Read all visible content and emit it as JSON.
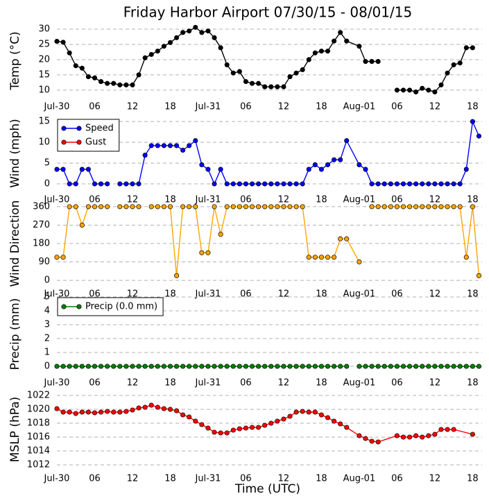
{
  "chart_data": [
    {
      "type": "line",
      "title": "Friday Harbor Airport 07/30/15 - 08/01/15",
      "ylabel": "Temp (°C)",
      "x": [
        0,
        1,
        2,
        3,
        4,
        5,
        6,
        7,
        8,
        9,
        10,
        11,
        12,
        13,
        14,
        15,
        16,
        17,
        18,
        19,
        20,
        21,
        22,
        23,
        24,
        25,
        26,
        27,
        28,
        29,
        30,
        31,
        32,
        33,
        34,
        35,
        36,
        37,
        38,
        39,
        40,
        41,
        42,
        43,
        44,
        45,
        46,
        48,
        49,
        50,
        51,
        52,
        54,
        55,
        56,
        57,
        58,
        59,
        60,
        61,
        62,
        63,
        64,
        65,
        66
      ],
      "series": [
        {
          "color": "#000000",
          "values": [
            26,
            25.7,
            22.2,
            18,
            17.2,
            14.4,
            14,
            12.8,
            12.2,
            12.2,
            11.7,
            11.7,
            11.7,
            15,
            20.6,
            21.7,
            22.8,
            24.4,
            25.6,
            27.2,
            28.9,
            29.4,
            30.6,
            28.9,
            29.4,
            27.2,
            23.9,
            18.3,
            15.6,
            16.1,
            12.8,
            12.2,
            12.2,
            11.1,
            11.1,
            11.1,
            11.1,
            14.4,
            15.6,
            16.7,
            20,
            22.2,
            22.8,
            22.8,
            26.1,
            28.9,
            26.1,
            24.4,
            19.4,
            19.4,
            19.4,
            null,
            10,
            10,
            10,
            9.4,
            10.6,
            10,
            9.4,
            11.7,
            15.6,
            18.3,
            18.9,
            23.9,
            23.9
          ]
        }
      ],
      "xlim": [
        0,
        67.5
      ],
      "ylim": [
        7.7,
        31.6
      ],
      "yticks": [
        10,
        15,
        20,
        25,
        30
      ],
      "grid": true,
      "xticks": [
        {
          "value": 0,
          "label": "Jul-30"
        },
        {
          "value": 6,
          "label": "06"
        },
        {
          "value": 12,
          "label": "12"
        },
        {
          "value": 18,
          "label": "18"
        },
        {
          "value": 24,
          "label": "Jul-31"
        },
        {
          "value": 30,
          "label": "06"
        },
        {
          "value": 36,
          "label": "12"
        },
        {
          "value": 42,
          "label": "18"
        },
        {
          "value": 48,
          "label": "Aug-01"
        },
        {
          "value": 54,
          "label": "06"
        },
        {
          "value": 60,
          "label": "12"
        },
        {
          "value": 66,
          "label": "18"
        }
      ]
    },
    {
      "type": "line",
      "ylabel": "Wind (mph)",
      "legend": "upper left",
      "x": [
        0,
        1,
        2,
        3,
        4,
        5,
        6,
        7,
        8,
        9,
        10,
        11,
        12,
        13,
        14,
        15,
        16,
        17,
        18,
        19,
        20,
        21,
        22,
        23,
        24,
        25,
        26,
        27,
        28,
        29,
        30,
        31,
        32,
        33,
        34,
        35,
        36,
        37,
        38,
        39,
        40,
        41,
        42,
        43,
        44,
        45,
        46,
        48,
        49,
        50,
        51,
        52,
        53,
        54,
        55,
        56,
        57,
        58,
        59,
        60,
        61,
        62,
        63,
        64,
        65,
        66,
        67
      ],
      "series": [
        {
          "name": "Speed",
          "color": "#0000ff",
          "values": [
            3.5,
            3.5,
            0,
            0,
            3.5,
            3.5,
            0,
            0,
            0,
            null,
            0,
            0,
            0,
            0,
            6.9,
            9.2,
            9.2,
            9.2,
            9.2,
            9.2,
            8.1,
            9.2,
            10.4,
            4.6,
            3.5,
            0,
            3.5,
            0,
            0,
            0,
            0,
            0,
            0,
            0,
            0,
            0,
            0,
            0,
            0,
            0,
            3.5,
            4.6,
            3.5,
            4.6,
            5.8,
            5.8,
            10.4,
            4.6,
            3.5,
            0,
            0,
            0,
            0,
            0,
            0,
            0,
            0,
            0,
            0,
            0,
            0,
            0,
            0,
            0,
            3.5,
            15,
            11.5
          ]
        },
        {
          "name": "Gust",
          "color": "#ff0000",
          "values": [
            null,
            null,
            null,
            null,
            null,
            null,
            null,
            null,
            null,
            null,
            null,
            null,
            null,
            null,
            null,
            null,
            null,
            null,
            null,
            null,
            null,
            null,
            null,
            null,
            null,
            null,
            null,
            null,
            null,
            null,
            null,
            null,
            null,
            null,
            null,
            null,
            null,
            null,
            null,
            null,
            null,
            null,
            null,
            null,
            null,
            null,
            null,
            null,
            null,
            null,
            null,
            null,
            null,
            null,
            null,
            null,
            null,
            null,
            null,
            null,
            null,
            null,
            null,
            null,
            null,
            null,
            null
          ]
        }
      ],
      "xlim": [
        0,
        67.5
      ],
      "ylim": [
        -1.5,
        16.2
      ],
      "yticks": [
        0,
        5,
        10,
        15
      ],
      "grid": true,
      "xticks": [
        {
          "value": 0,
          "label": "Jul-30"
        },
        {
          "value": 6,
          "label": "06"
        },
        {
          "value": 12,
          "label": "12"
        },
        {
          "value": 18,
          "label": "18"
        },
        {
          "value": 24,
          "label": "Jul-31"
        },
        {
          "value": 30,
          "label": "06"
        },
        {
          "value": 36,
          "label": "12"
        },
        {
          "value": 42,
          "label": "18"
        },
        {
          "value": 48,
          "label": "Aug-01"
        },
        {
          "value": 54,
          "label": "06"
        },
        {
          "value": 60,
          "label": "12"
        },
        {
          "value": 66,
          "label": "18"
        }
      ]
    },
    {
      "type": "line",
      "ylabel": "Wind Direction",
      "x": [
        0,
        1,
        2,
        3,
        4,
        5,
        6,
        7,
        8,
        9,
        10,
        11,
        12,
        13,
        14,
        15,
        16,
        17,
        18,
        19,
        20,
        21,
        22,
        23,
        24,
        25,
        26,
        27,
        28,
        29,
        30,
        31,
        32,
        33,
        34,
        35,
        36,
        37,
        38,
        39,
        40,
        41,
        42,
        43,
        44,
        45,
        46,
        48,
        49,
        50,
        51,
        52,
        53,
        54,
        55,
        56,
        57,
        58,
        59,
        60,
        61,
        62,
        63,
        64,
        65,
        66,
        67
      ],
      "series": [
        {
          "color": "#ffa500",
          "values": [
            113,
            113,
            360,
            360,
            270,
            360,
            360,
            360,
            360,
            null,
            360,
            360,
            360,
            360,
            null,
            360,
            360,
            360,
            360,
            23,
            360,
            360,
            360,
            135,
            135,
            360,
            225,
            360,
            360,
            360,
            360,
            360,
            360,
            360,
            360,
            360,
            360,
            360,
            360,
            360,
            113,
            113,
            113,
            113,
            113,
            203,
            203,
            90,
            null,
            360,
            360,
            360,
            360,
            360,
            360,
            360,
            360,
            360,
            360,
            360,
            360,
            360,
            360,
            360,
            113,
            360,
            23
          ]
        }
      ],
      "xlim": [
        0,
        67.5
      ],
      "ylim": [
        -20,
        380
      ],
      "yticks": [
        0,
        90,
        180,
        270,
        360
      ],
      "grid": true,
      "xticks": [
        {
          "value": 0,
          "label": "Jul-30"
        },
        {
          "value": 6,
          "label": "06"
        },
        {
          "value": 12,
          "label": "12"
        },
        {
          "value": 18,
          "label": "18"
        },
        {
          "value": 24,
          "label": "Jul-31"
        },
        {
          "value": 30,
          "label": "06"
        },
        {
          "value": 36,
          "label": "12"
        },
        {
          "value": 42,
          "label": "18"
        },
        {
          "value": 48,
          "label": "Aug-01"
        },
        {
          "value": 54,
          "label": "06"
        },
        {
          "value": 60,
          "label": "12"
        },
        {
          "value": 66,
          "label": "18"
        }
      ]
    },
    {
      "type": "line",
      "ylabel": "Precip (mm)",
      "legend": "upper left",
      "x": [
        0,
        1,
        2,
        3,
        4,
        5,
        6,
        7,
        8,
        9,
        10,
        11,
        12,
        13,
        14,
        15,
        16,
        17,
        18,
        19,
        20,
        21,
        22,
        23,
        24,
        25,
        26,
        27,
        28,
        29,
        30,
        31,
        32,
        33,
        34,
        35,
        36,
        37,
        38,
        39,
        40,
        41,
        42,
        43,
        44,
        45,
        46,
        47,
        48,
        49,
        50,
        51,
        52,
        53,
        54,
        55,
        56,
        57,
        58,
        59,
        60,
        61,
        62,
        63,
        64,
        65,
        66,
        67
      ],
      "series": [
        {
          "name": "Precip (0.0 mm)",
          "color": "#008000",
          "values": [
            0,
            0,
            0,
            0,
            0,
            0,
            0,
            0,
            0,
            0,
            0,
            0,
            0,
            0,
            0,
            0,
            0,
            0,
            0,
            0,
            0,
            0,
            0,
            0,
            0,
            0,
            0,
            0,
            0,
            0,
            0,
            0,
            0,
            0,
            0,
            0,
            0,
            0,
            0,
            0,
            0,
            0,
            0,
            0,
            0,
            0,
            0,
            null,
            0,
            0,
            0,
            0,
            0,
            0,
            0,
            0,
            0,
            0,
            0,
            0,
            0,
            0,
            0,
            0,
            0,
            0,
            0,
            0
          ]
        }
      ],
      "xlim": [
        0,
        67.5
      ],
      "ylim": [
        -0.5,
        5.15
      ],
      "yticks": [
        0,
        1,
        2,
        3,
        4,
        5
      ],
      "grid": true,
      "xticks": [
        {
          "value": 0,
          "label": "Jul-30"
        },
        {
          "value": 6,
          "label": "06"
        },
        {
          "value": 12,
          "label": "12"
        },
        {
          "value": 18,
          "label": "18"
        },
        {
          "value": 24,
          "label": "Jul-31"
        },
        {
          "value": 30,
          "label": "06"
        },
        {
          "value": 36,
          "label": "12"
        },
        {
          "value": 42,
          "label": "18"
        },
        {
          "value": 48,
          "label": "Aug-01"
        },
        {
          "value": 54,
          "label": "06"
        },
        {
          "value": 60,
          "label": "12"
        },
        {
          "value": 66,
          "label": "18"
        }
      ]
    },
    {
      "type": "line",
      "ylabel": "MSLP (hPa)",
      "xlabel": "Time (UTC)",
      "x": [
        0,
        1,
        2,
        3,
        4,
        5,
        6,
        7,
        8,
        9,
        10,
        11,
        12,
        13,
        14,
        15,
        16,
        17,
        18,
        19,
        20,
        21,
        22,
        23,
        24,
        25,
        26,
        27,
        28,
        29,
        30,
        31,
        32,
        33,
        34,
        35,
        36,
        37,
        38,
        39,
        40,
        41,
        42,
        43,
        44,
        45,
        46,
        48,
        49,
        50,
        51,
        54,
        55,
        56,
        57,
        58,
        59,
        60,
        61,
        62,
        63,
        66
      ],
      "series": [
        {
          "color": "#ff0000",
          "values": [
            1020.1,
            1019.6,
            1019.6,
            1019.4,
            1019.6,
            1019.6,
            1019.5,
            1019.6,
            1019.7,
            1019.6,
            1019.6,
            1019.7,
            1019.9,
            1020.2,
            1020.3,
            1020.6,
            1020.3,
            1020.1,
            1020,
            1019.8,
            1019.2,
            1018.9,
            1018.3,
            1017.8,
            1017.3,
            1016.7,
            1016.6,
            1016.6,
            1017,
            1017.2,
            1017.3,
            1017.4,
            1017.4,
            1017.7,
            1018,
            1018.3,
            1018.6,
            1019,
            1019.6,
            1019.7,
            1019.6,
            1019.6,
            1019.2,
            1018.8,
            1018.3,
            1017.9,
            1017.4,
            1016.2,
            1015.8,
            1015.4,
            1015.3,
            1016.2,
            1016,
            1016,
            1016.2,
            1016,
            1016.2,
            1016.4,
            1017.1,
            1017.1,
            1017.1,
            1016.4
          ]
        }
      ],
      "xlim": [
        0,
        67.5
      ],
      "ylim": [
        1011.4,
        1022.8
      ],
      "yticks": [
        1012,
        1014,
        1016,
        1018,
        1020,
        1022
      ],
      "grid": true,
      "xticks": [
        {
          "value": 0,
          "label": "Jul-30"
        },
        {
          "value": 6,
          "label": "06"
        },
        {
          "value": 12,
          "label": "12"
        },
        {
          "value": 18,
          "label": "18"
        },
        {
          "value": 24,
          "label": "Jul-31"
        },
        {
          "value": 30,
          "label": "06"
        },
        {
          "value": 36,
          "label": "12"
        },
        {
          "value": 42,
          "label": "18"
        },
        {
          "value": 48,
          "label": "Aug-01"
        },
        {
          "value": 54,
          "label": "06"
        },
        {
          "value": 60,
          "label": "12"
        },
        {
          "value": 66,
          "label": "18"
        }
      ]
    }
  ]
}
